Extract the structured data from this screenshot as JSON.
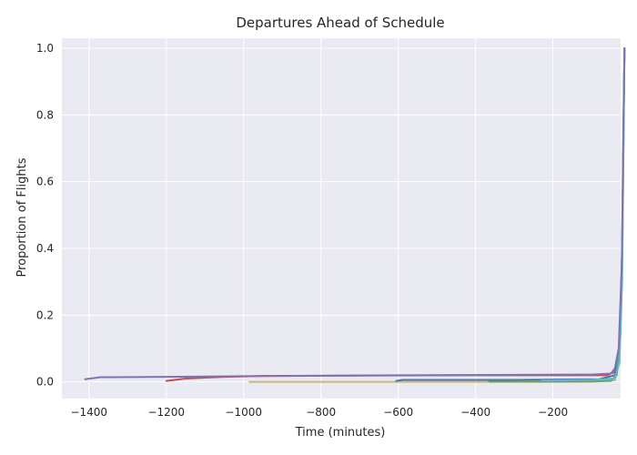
{
  "chart_data": {
    "type": "line",
    "title": "Departures Ahead of Schedule",
    "xlabel": "Time (minutes)",
    "ylabel": "Proportion of Flights",
    "xlim": [
      -1470,
      -25
    ],
    "ylim": [
      -0.05,
      1.03
    ],
    "xticks": [
      -1400,
      -1200,
      -1000,
      -800,
      -600,
      -400,
      -200,
      0
    ],
    "xtick_labels": [
      "−1400",
      "−1200",
      "−1000",
      "−800",
      "−600",
      "−400",
      "−200",
      "0"
    ],
    "yticks": [
      0.0,
      0.2,
      0.4,
      0.6,
      0.8,
      1.0
    ],
    "ytick_labels": [
      "0.0",
      "0.2",
      "0.4",
      "0.6",
      "0.8",
      "1.0"
    ],
    "grid": true,
    "colors": {
      "plot_background": "#eaeaf2",
      "grid": "#ffffff",
      "text": "#262626"
    },
    "series": [
      {
        "color": "#c44e52",
        "points": [
          [
            -1200,
            0.003
          ],
          [
            -1150,
            0.01
          ],
          [
            -1050,
            0.015
          ],
          [
            -950,
            0.018
          ],
          [
            -400,
            0.02
          ],
          [
            -60,
            0.02
          ],
          [
            -40,
            0.03
          ],
          [
            -30,
            0.08
          ],
          [
            -22,
            0.3
          ],
          [
            -18,
            0.7
          ],
          [
            -15,
            1.0
          ]
        ]
      },
      {
        "color": "#ccb974",
        "points": [
          [
            -985,
            0.0
          ],
          [
            -600,
            0.0
          ],
          [
            -100,
            0.0
          ],
          [
            -40,
            0.005
          ],
          [
            -30,
            0.05
          ],
          [
            -22,
            0.3
          ],
          [
            -18,
            0.75
          ],
          [
            -15,
            1.0
          ]
        ]
      },
      {
        "color": "#4c72b0",
        "points": [
          [
            -605,
            0.003
          ],
          [
            -590,
            0.006
          ],
          [
            -300,
            0.006
          ],
          [
            -80,
            0.008
          ],
          [
            -40,
            0.02
          ],
          [
            -28,
            0.1
          ],
          [
            -21,
            0.4
          ],
          [
            -17,
            0.8
          ],
          [
            -15,
            1.0
          ]
        ]
      },
      {
        "color": "#55a868",
        "points": [
          [
            -365,
            0.001
          ],
          [
            -200,
            0.001
          ],
          [
            -50,
            0.003
          ],
          [
            -35,
            0.02
          ],
          [
            -25,
            0.15
          ],
          [
            -20,
            0.45
          ],
          [
            -17,
            0.8
          ],
          [
            -15,
            1.0
          ]
        ]
      },
      {
        "color": "#64b5cd",
        "points": [
          [
            -230,
            0.004
          ],
          [
            -100,
            0.006
          ],
          [
            -40,
            0.01
          ],
          [
            -28,
            0.06
          ],
          [
            -21,
            0.3
          ],
          [
            -17,
            0.75
          ],
          [
            -15,
            1.0
          ]
        ]
      },
      {
        "color": "#8172b2",
        "points": [
          [
            -1410,
            0.008
          ],
          [
            -1370,
            0.014
          ],
          [
            -1200,
            0.015
          ],
          [
            -1000,
            0.017
          ],
          [
            -600,
            0.02
          ],
          [
            -100,
            0.022
          ],
          [
            -50,
            0.025
          ],
          [
            -40,
            0.04
          ],
          [
            -30,
            0.1
          ],
          [
            -22,
            0.35
          ],
          [
            -18,
            0.75
          ],
          [
            -15,
            1.0
          ]
        ]
      }
    ]
  }
}
